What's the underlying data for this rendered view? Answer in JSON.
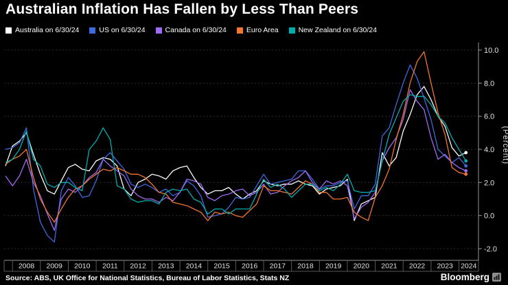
{
  "title": "Australian Inflation Has Fallen by Less Than Peers",
  "source": "Source: ABS, UK Office for National Statistics, Bureau of Labor Statistics, Stats NZ",
  "brand": "Bloomberg",
  "legend": {
    "items": [
      {
        "id": "australia",
        "label": "Australia on 6/30/24"
      },
      {
        "id": "us",
        "label": "US on 6/30/24"
      },
      {
        "id": "canada",
        "label": "Canada on 6/30/24"
      },
      {
        "id": "euro-area",
        "label": "Euro Area"
      },
      {
        "id": "new-zealand",
        "label": "New Zealand on 6/30/24"
      }
    ]
  },
  "chart_data": {
    "type": "line",
    "title": "Australian Inflation Has Fallen by Less Than Peers",
    "xlabel": "",
    "ylabel": "(Percent)",
    "legend_position": "top-left",
    "grid": "horizontal-dotted",
    "xlim": [
      2007.7,
      2024.7
    ],
    "ylim": [
      -2.0,
      10.0
    ],
    "yticks": [
      10.0,
      8.0,
      6.0,
      4.0,
      2.0,
      0.0,
      -2.0
    ],
    "xticks": [
      2008,
      2009,
      2010,
      2011,
      2012,
      2013,
      2014,
      2015,
      2016,
      2017,
      2018,
      2019,
      2020,
      2021,
      2022,
      2023,
      2024
    ],
    "x": [
      2007.75,
      2008.0,
      2008.25,
      2008.5,
      2008.75,
      2009.0,
      2009.25,
      2009.5,
      2009.75,
      2010.0,
      2010.25,
      2010.5,
      2010.75,
      2011.0,
      2011.25,
      2011.5,
      2011.75,
      2012.0,
      2012.25,
      2012.5,
      2012.75,
      2013.0,
      2013.25,
      2013.5,
      2013.75,
      2014.0,
      2014.25,
      2014.5,
      2014.75,
      2015.0,
      2015.25,
      2015.5,
      2015.75,
      2016.0,
      2016.25,
      2016.5,
      2016.75,
      2017.0,
      2017.25,
      2017.5,
      2017.75,
      2018.0,
      2018.25,
      2018.5,
      2018.75,
      2019.0,
      2019.25,
      2019.5,
      2019.75,
      2020.0,
      2020.25,
      2020.5,
      2020.75,
      2021.0,
      2021.25,
      2021.5,
      2021.75,
      2022.0,
      2022.25,
      2022.5,
      2022.75,
      2023.0,
      2023.25,
      2023.5,
      2023.75,
      2024.0,
      2024.25
    ],
    "series": [
      {
        "id": "australia",
        "name": "Australia on 6/30/24",
        "color": "#ffffff",
        "values": [
          3.0,
          4.2,
          4.5,
          5.0,
          3.7,
          2.5,
          1.5,
          1.3,
          2.1,
          2.9,
          3.1,
          2.8,
          2.7,
          3.3,
          3.5,
          3.4,
          3.0,
          1.6,
          1.2,
          2.0,
          2.2,
          2.5,
          2.4,
          2.2,
          2.7,
          2.9,
          3.0,
          2.3,
          1.7,
          1.3,
          1.5,
          1.5,
          1.7,
          1.3,
          1.0,
          1.3,
          1.5,
          2.1,
          1.9,
          1.8,
          1.9,
          1.9,
          2.1,
          1.9,
          1.8,
          1.3,
          1.6,
          1.7,
          1.8,
          2.2,
          -0.3,
          0.7,
          0.9,
          1.1,
          3.8,
          3.0,
          3.5,
          5.1,
          6.1,
          7.3,
          7.8,
          7.0,
          6.0,
          5.4,
          4.1,
          3.6,
          3.8
        ]
      },
      {
        "id": "us",
        "name": "US on 6/30/24",
        "color": "#3f6be0",
        "values": [
          4.0,
          4.1,
          4.4,
          5.3,
          1.6,
          -0.4,
          -1.2,
          -1.6,
          1.5,
          2.3,
          1.8,
          1.1,
          1.2,
          2.1,
          3.4,
          3.8,
          3.3,
          2.8,
          1.9,
          1.7,
          1.9,
          1.7,
          1.4,
          1.6,
          1.2,
          1.4,
          2.1,
          1.8,
          1.2,
          -0.1,
          0.0,
          0.1,
          0.5,
          1.1,
          1.0,
          1.1,
          1.8,
          2.5,
          1.9,
          2.0,
          2.1,
          2.2,
          2.7,
          2.7,
          2.2,
          1.6,
          1.8,
          1.8,
          2.0,
          2.1,
          0.4,
          1.2,
          1.2,
          1.9,
          4.8,
          5.3,
          6.7,
          8.0,
          9.1,
          8.3,
          7.1,
          5.8,
          4.0,
          3.6,
          3.2,
          3.5,
          3.0
        ]
      },
      {
        "id": "canada",
        "name": "Canada on 6/30/24",
        "color": "#a06bf5",
        "values": [
          2.4,
          1.8,
          2.4,
          3.4,
          2.0,
          1.2,
          0.1,
          -0.9,
          1.0,
          1.6,
          1.4,
          1.8,
          2.3,
          2.6,
          3.4,
          3.0,
          2.7,
          2.4,
          1.6,
          1.2,
          1.0,
          1.0,
          0.8,
          1.1,
          0.9,
          1.4,
          2.2,
          2.1,
          1.9,
          1.1,
          0.9,
          1.2,
          1.3,
          1.5,
          1.6,
          1.2,
          1.4,
          1.9,
          1.3,
          1.4,
          1.8,
          2.1,
          2.3,
          2.7,
          2.0,
          1.6,
          2.1,
          1.9,
          2.1,
          1.8,
          -0.2,
          0.5,
          0.8,
          1.4,
          3.3,
          4.1,
          4.7,
          5.8,
          7.6,
          6.9,
          6.4,
          4.7,
          3.4,
          3.7,
          3.2,
          2.9,
          2.7
        ]
      },
      {
        "id": "euro-area",
        "name": "Euro Area",
        "color": "#f5762e",
        "values": [
          3.1,
          3.4,
          3.6,
          4.0,
          2.3,
          1.0,
          0.2,
          -0.4,
          0.4,
          1.1,
          1.6,
          1.8,
          2.2,
          2.5,
          2.8,
          2.7,
          2.9,
          2.7,
          2.5,
          2.5,
          2.3,
          1.9,
          1.4,
          1.3,
          0.8,
          0.7,
          0.6,
          0.4,
          0.2,
          -0.3,
          0.2,
          0.1,
          0.2,
          0.0,
          -0.1,
          0.3,
          0.7,
          1.8,
          1.5,
          1.5,
          1.4,
          1.3,
          1.7,
          2.1,
          1.9,
          1.4,
          1.4,
          1.0,
          1.0,
          1.1,
          0.2,
          -0.1,
          -0.3,
          1.1,
          1.8,
          2.8,
          4.6,
          6.1,
          8.0,
          9.3,
          9.9,
          8.0,
          6.2,
          4.9,
          2.9,
          2.6,
          2.5
        ]
      },
      {
        "id": "new-zealand",
        "name": "New Zealand on 6/30/24",
        "color": "#00aeb0",
        "values": [
          3.2,
          3.4,
          4.0,
          5.1,
          3.4,
          3.0,
          1.9,
          1.7,
          2.0,
          2.0,
          1.7,
          1.5,
          4.0,
          4.5,
          5.3,
          4.6,
          1.8,
          1.6,
          1.0,
          0.8,
          0.9,
          0.9,
          0.7,
          1.4,
          1.6,
          1.5,
          1.6,
          1.0,
          0.8,
          0.1,
          0.4,
          0.4,
          0.1,
          0.4,
          0.4,
          0.4,
          1.3,
          2.2,
          1.7,
          1.9,
          1.6,
          1.1,
          1.5,
          1.9,
          1.9,
          1.5,
          1.7,
          1.5,
          1.9,
          2.5,
          1.5,
          1.4,
          1.4,
          1.5,
          3.3,
          4.9,
          5.9,
          6.9,
          7.3,
          7.2,
          7.2,
          6.7,
          6.0,
          5.6,
          4.7,
          4.0,
          3.3
        ]
      }
    ]
  }
}
